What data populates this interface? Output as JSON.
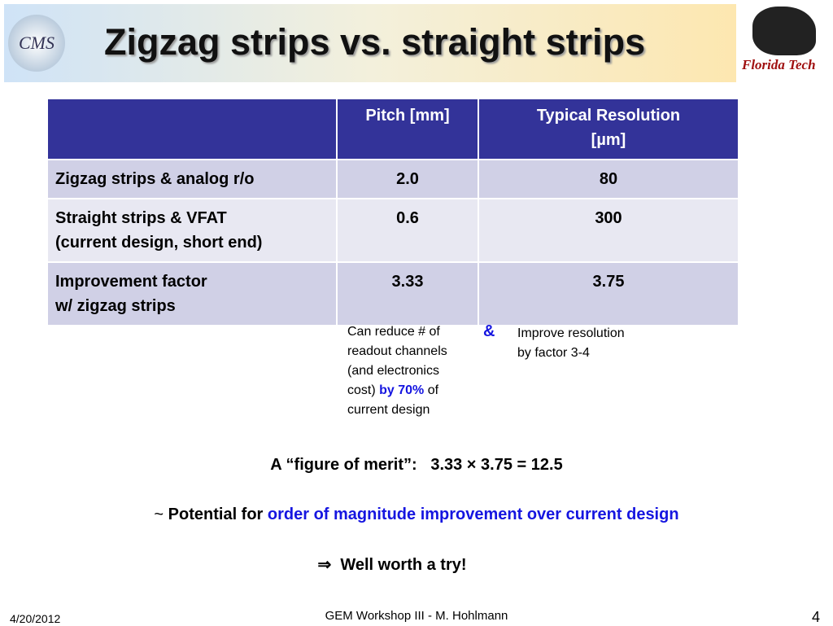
{
  "logos": {
    "left": "CMS",
    "right": "Florida Tech"
  },
  "title": "Zigzag strips vs. straight strips",
  "table": {
    "header": [
      [
        "Pitch [mm]"
      ],
      [
        "Typical Resolution",
        "[µm]"
      ]
    ],
    "rows": [
      [
        [
          "Zigzag strips & analog r/o"
        ],
        [
          "2.0"
        ],
        [
          "80"
        ]
      ],
      [
        [
          "Straight strips & VFAT",
          "(current design, short end)"
        ],
        [
          "0.6"
        ],
        [
          "300"
        ]
      ],
      [
        [
          "Improvement factor",
          "w/ zigzag strips"
        ],
        [
          "3.33"
        ],
        [
          "3.75"
        ]
      ]
    ]
  },
  "note_left": {
    "lines": [
      "Can reduce # of",
      "readout channels",
      "(and electronics"
    ],
    "cost_prefix": "cost)",
    "highlight": "by 70%",
    "cost_suffix": "of",
    "last": "current design"
  },
  "ampersand": "&",
  "note_right": [
    "Improve resolution",
    "by factor 3-4"
  ],
  "merit": {
    "label": "A “figure of merit”:",
    "formula": "3.33 × 3.75 = 12.5"
  },
  "potential": {
    "tilde": "~",
    "prefix": "Potential for",
    "highlight": "order of magnitude improvement over current design"
  },
  "conclusion": {
    "symbol": "⇒",
    "text": "Well worth a try!"
  },
  "footer": {
    "date": "4/20/2012",
    "center": "GEM Workshop III - M. Hohlmann",
    "page": "4"
  }
}
